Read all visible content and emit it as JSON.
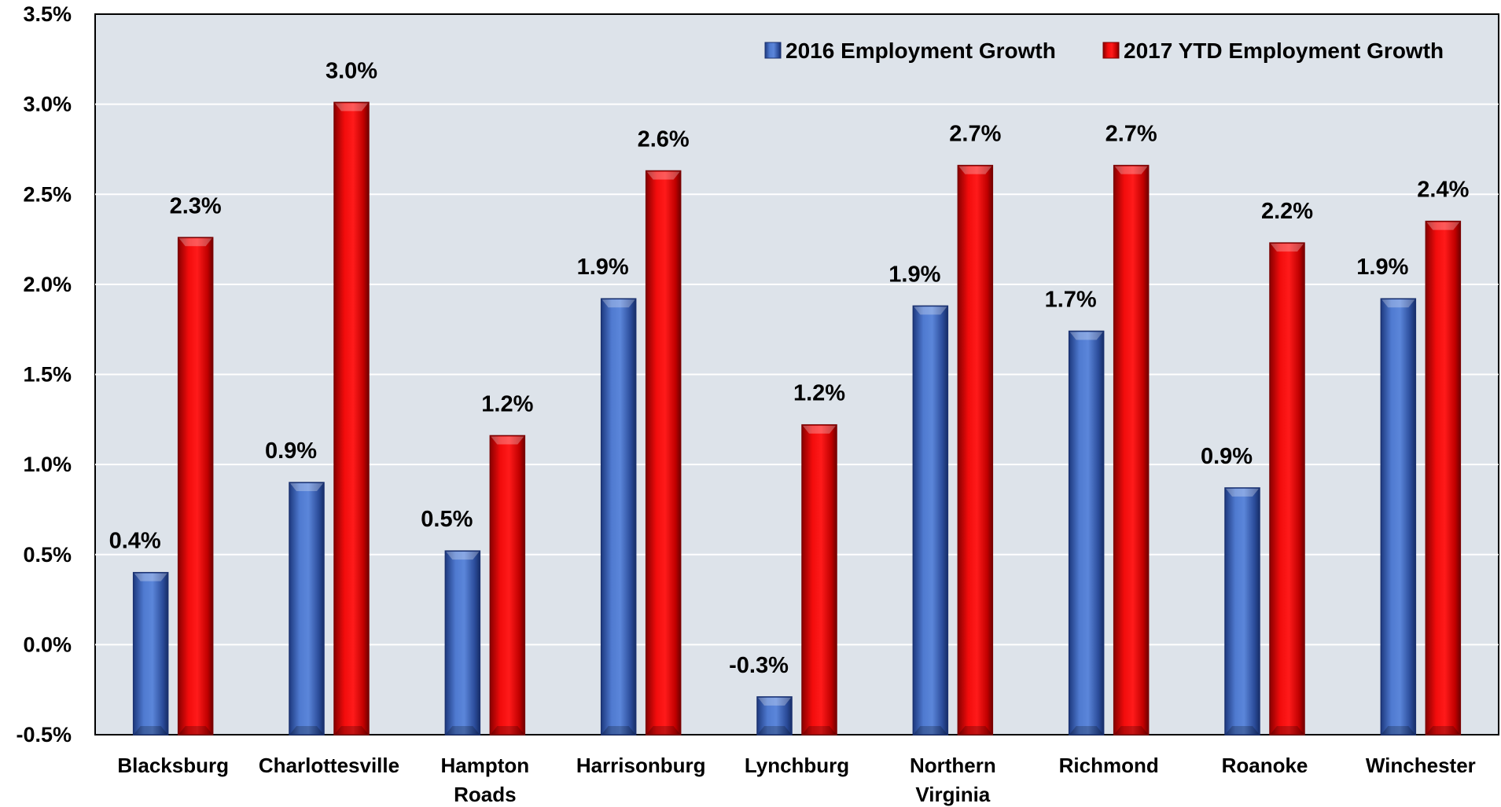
{
  "chart_data": {
    "type": "bar",
    "categories": [
      [
        "Blacksburg"
      ],
      [
        "Charlottesville"
      ],
      [
        "Hampton",
        "Roads"
      ],
      [
        "Harrisonburg"
      ],
      [
        "Lynchburg"
      ],
      [
        "Northern",
        "Virginia"
      ],
      [
        "Richmond"
      ],
      [
        "Roanoke"
      ],
      [
        "Winchester"
      ]
    ],
    "series": [
      {
        "name": "2016 Employment Growth",
        "color": "#3a63b8",
        "values": [
          0.4,
          0.9,
          0.52,
          1.92,
          -0.29,
          1.88,
          1.74,
          0.87,
          1.92
        ],
        "labels": [
          "0.4%",
          "0.9%",
          "0.5%",
          "1.9%",
          "-0.3%",
          "1.9%",
          "1.7%",
          "0.9%",
          "1.9%"
        ]
      },
      {
        "name": "2017 YTD Employment Growth",
        "color": "#e00000",
        "values": [
          2.26,
          3.01,
          1.16,
          2.63,
          1.22,
          2.66,
          2.66,
          2.23,
          2.35
        ],
        "labels": [
          "2.3%",
          "3.0%",
          "1.2%",
          "2.6%",
          "1.2%",
          "2.7%",
          "2.7%",
          "2.2%",
          "2.4%"
        ]
      }
    ],
    "yticks": [
      -0.5,
      0.0,
      0.5,
      1.0,
      1.5,
      2.0,
      2.5,
      3.0,
      3.5
    ],
    "ytick_labels": [
      "-0.5%",
      "0.0%",
      "0.5%",
      "1.0%",
      "1.5%",
      "2.0%",
      "2.5%",
      "3.0%",
      "3.5%"
    ],
    "ylim": [
      -0.5,
      3.5
    ],
    "grid": true,
    "legend_position": "top-right",
    "plot_background": "#dde3ea",
    "title": "",
    "xlabel": "",
    "ylabel": ""
  }
}
